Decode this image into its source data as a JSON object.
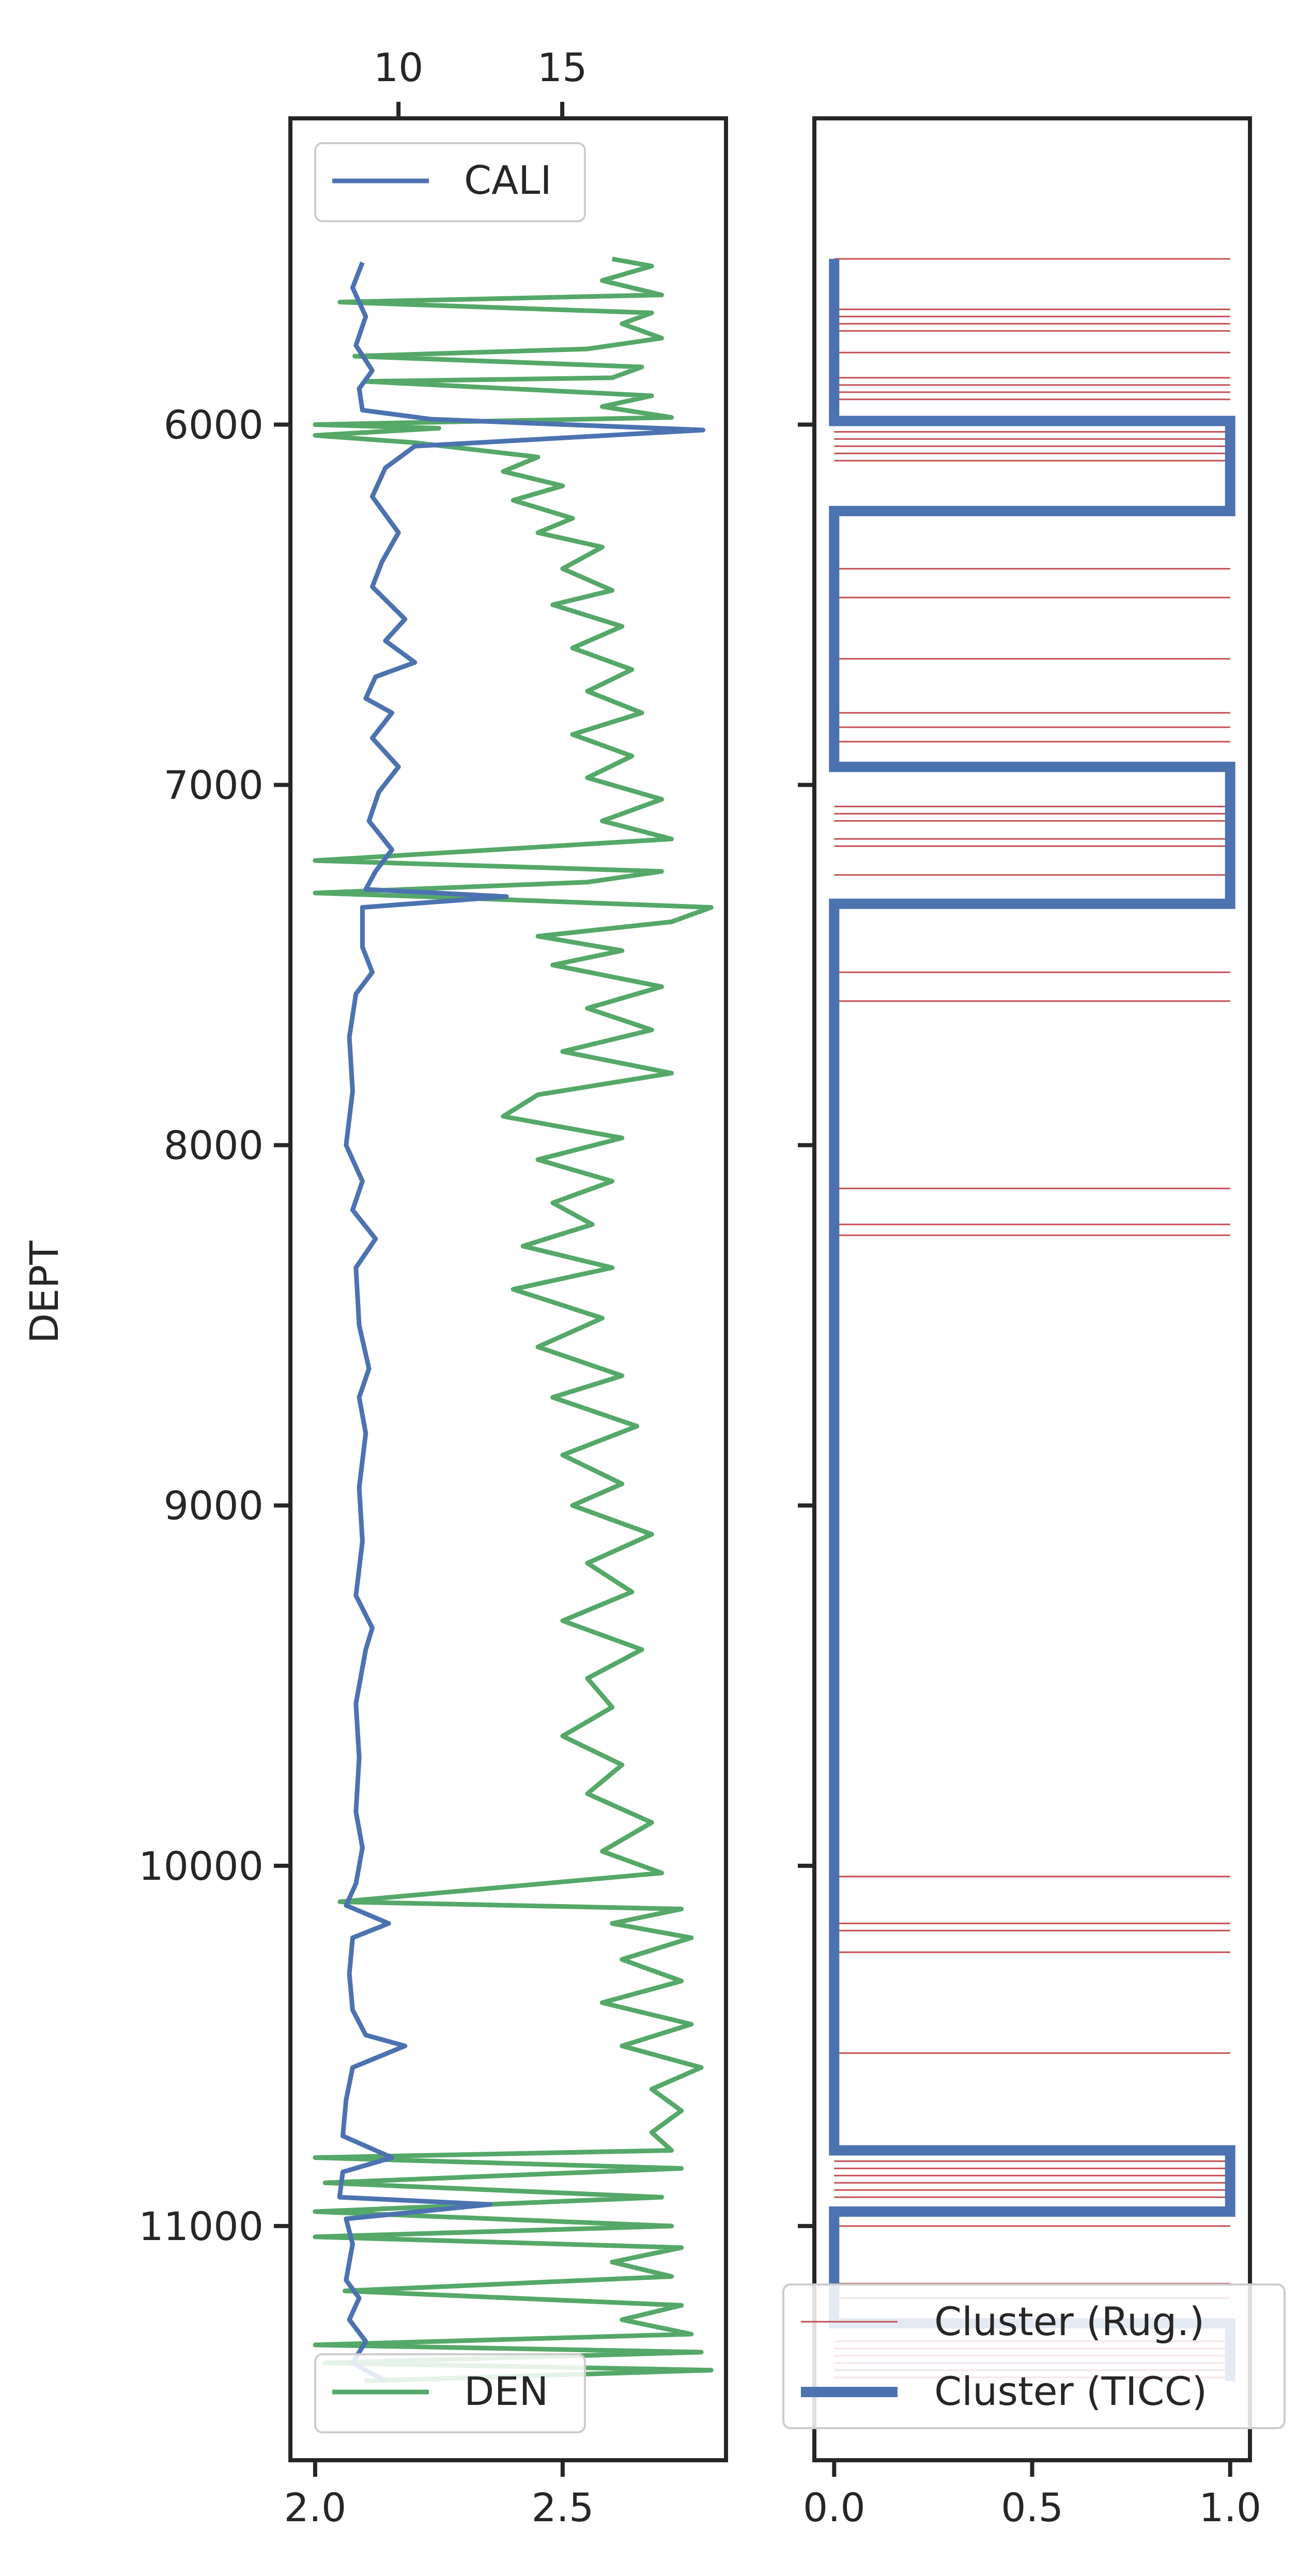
{
  "chart_data": [
    {
      "type": "line",
      "title": "",
      "ylabel": "DEPT",
      "ylim": [
        11650,
        5150
      ],
      "y_ticks": [
        "6000",
        "7000",
        "8000",
        "9000",
        "10000",
        "11000"
      ],
      "y_tick_values": [
        6000,
        7000,
        8000,
        9000,
        10000,
        11000
      ],
      "top_axis": {
        "label": "",
        "lim": [
          6.7,
          20
        ],
        "ticks": [
          "10",
          "15"
        ],
        "tick_values": [
          10,
          15
        ]
      },
      "bottom_axis": {
        "label": "",
        "lim": [
          1.95,
          2.83
        ],
        "ticks": [
          "2.0",
          "2.5"
        ],
        "tick_values": [
          2.0,
          2.5
        ]
      },
      "grid": false,
      "series": [
        {
          "name": "CALI",
          "axis": "top",
          "color": "#4c72b0",
          "legend_position": "upper-left",
          "points": [
            [
              8.9,
              5550
            ],
            [
              8.6,
              5620
            ],
            [
              9.0,
              5700
            ],
            [
              8.7,
              5780
            ],
            [
              9.2,
              5850
            ],
            [
              8.8,
              5900
            ],
            [
              8.9,
              5960
            ],
            [
              11.0,
              5985
            ],
            [
              19.3,
              6015
            ],
            [
              10.5,
              6060
            ],
            [
              9.6,
              6120
            ],
            [
              9.2,
              6200
            ],
            [
              10.0,
              6300
            ],
            [
              9.5,
              6380
            ],
            [
              9.2,
              6450
            ],
            [
              10.2,
              6540
            ],
            [
              9.6,
              6600
            ],
            [
              10.5,
              6660
            ],
            [
              9.3,
              6700
            ],
            [
              9.0,
              6760
            ],
            [
              9.8,
              6800
            ],
            [
              9.2,
              6870
            ],
            [
              10.0,
              6950
            ],
            [
              9.4,
              7020
            ],
            [
              9.1,
              7100
            ],
            [
              9.8,
              7180
            ],
            [
              9.3,
              7240
            ],
            [
              9.0,
              7290
            ],
            [
              13.3,
              7310
            ],
            [
              8.9,
              7340
            ],
            [
              8.9,
              7450
            ],
            [
              9.2,
              7520
            ],
            [
              8.7,
              7580
            ],
            [
              8.5,
              7700
            ],
            [
              8.6,
              7850
            ],
            [
              8.4,
              8000
            ],
            [
              8.9,
              8100
            ],
            [
              8.6,
              8180
            ],
            [
              9.3,
              8260
            ],
            [
              8.7,
              8340
            ],
            [
              8.8,
              8500
            ],
            [
              9.1,
              8620
            ],
            [
              8.8,
              8700
            ],
            [
              9.0,
              8800
            ],
            [
              8.8,
              8950
            ],
            [
              8.9,
              9100
            ],
            [
              8.7,
              9250
            ],
            [
              9.2,
              9340
            ],
            [
              9.0,
              9400
            ],
            [
              8.7,
              9550
            ],
            [
              8.8,
              9700
            ],
            [
              8.7,
              9850
            ],
            [
              8.9,
              9950
            ],
            [
              8.7,
              10050
            ],
            [
              8.4,
              10110
            ],
            [
              9.7,
              10160
            ],
            [
              8.6,
              10200
            ],
            [
              8.5,
              10300
            ],
            [
              8.6,
              10400
            ],
            [
              9.0,
              10470
            ],
            [
              10.2,
              10500
            ],
            [
              8.6,
              10560
            ],
            [
              8.4,
              10650
            ],
            [
              8.3,
              10750
            ],
            [
              9.8,
              10810
            ],
            [
              8.3,
              10850
            ],
            [
              8.2,
              10920
            ],
            [
              12.8,
              10940
            ],
            [
              8.4,
              10980
            ],
            [
              8.6,
              11050
            ],
            [
              8.4,
              11150
            ],
            [
              8.8,
              11200
            ],
            [
              8.5,
              11260
            ],
            [
              9.0,
              11320
            ],
            [
              8.6,
              11380
            ],
            [
              9.6,
              11430
            ]
          ]
        },
        {
          "name": "DEN",
          "axis": "bottom",
          "color": "#55a868",
          "legend_position": "lower-left",
          "points": [
            [
              2.6,
              5540
            ],
            [
              2.68,
              5560
            ],
            [
              2.58,
              5600
            ],
            [
              2.7,
              5640
            ],
            [
              2.05,
              5660
            ],
            [
              2.68,
              5690
            ],
            [
              2.62,
              5720
            ],
            [
              2.7,
              5760
            ],
            [
              2.55,
              5790
            ],
            [
              2.08,
              5810
            ],
            [
              2.66,
              5840
            ],
            [
              2.6,
              5870
            ],
            [
              2.1,
              5880
            ],
            [
              2.68,
              5920
            ],
            [
              2.58,
              5950
            ],
            [
              2.72,
              5980
            ],
            [
              2.0,
              6000
            ],
            [
              2.25,
              6010
            ],
            [
              2.0,
              6030
            ],
            [
              2.2,
              6050
            ],
            [
              2.45,
              6090
            ],
            [
              2.38,
              6130
            ],
            [
              2.5,
              6170
            ],
            [
              2.4,
              6210
            ],
            [
              2.52,
              6260
            ],
            [
              2.45,
              6300
            ],
            [
              2.58,
              6340
            ],
            [
              2.5,
              6400
            ],
            [
              2.6,
              6460
            ],
            [
              2.48,
              6500
            ],
            [
              2.62,
              6560
            ],
            [
              2.52,
              6620
            ],
            [
              2.64,
              6680
            ],
            [
              2.55,
              6740
            ],
            [
              2.66,
              6800
            ],
            [
              2.52,
              6860
            ],
            [
              2.64,
              6920
            ],
            [
              2.55,
              6980
            ],
            [
              2.7,
              7040
            ],
            [
              2.58,
              7100
            ],
            [
              2.72,
              7150
            ],
            [
              2.0,
              7210
            ],
            [
              2.7,
              7240
            ],
            [
              2.55,
              7270
            ],
            [
              2.0,
              7300
            ],
            [
              2.22,
              7310
            ],
            [
              2.8,
              7340
            ],
            [
              2.72,
              7380
            ],
            [
              2.45,
              7420
            ],
            [
              2.62,
              7460
            ],
            [
              2.48,
              7500
            ],
            [
              2.7,
              7560
            ],
            [
              2.55,
              7620
            ],
            [
              2.68,
              7680
            ],
            [
              2.5,
              7740
            ],
            [
              2.72,
              7800
            ],
            [
              2.45,
              7860
            ],
            [
              2.38,
              7920
            ],
            [
              2.62,
              7980
            ],
            [
              2.45,
              8040
            ],
            [
              2.6,
              8100
            ],
            [
              2.48,
              8160
            ],
            [
              2.56,
              8220
            ],
            [
              2.42,
              8280
            ],
            [
              2.6,
              8340
            ],
            [
              2.4,
              8400
            ],
            [
              2.58,
              8480
            ],
            [
              2.45,
              8560
            ],
            [
              2.62,
              8640
            ],
            [
              2.48,
              8700
            ],
            [
              2.65,
              8780
            ],
            [
              2.5,
              8860
            ],
            [
              2.62,
              8940
            ],
            [
              2.52,
              9000
            ],
            [
              2.68,
              9080
            ],
            [
              2.55,
              9160
            ],
            [
              2.64,
              9240
            ],
            [
              2.5,
              9320
            ],
            [
              2.66,
              9400
            ],
            [
              2.55,
              9480
            ],
            [
              2.6,
              9560
            ],
            [
              2.5,
              9640
            ],
            [
              2.62,
              9720
            ],
            [
              2.55,
              9800
            ],
            [
              2.68,
              9880
            ],
            [
              2.58,
              9960
            ],
            [
              2.7,
              10020
            ],
            [
              2.05,
              10100
            ],
            [
              2.74,
              10120
            ],
            [
              2.6,
              10160
            ],
            [
              2.76,
              10200
            ],
            [
              2.62,
              10260
            ],
            [
              2.74,
              10320
            ],
            [
              2.58,
              10380
            ],
            [
              2.76,
              10440
            ],
            [
              2.62,
              10500
            ],
            [
              2.78,
              10560
            ],
            [
              2.68,
              10620
            ],
            [
              2.74,
              10680
            ],
            [
              2.68,
              10740
            ],
            [
              2.72,
              10790
            ],
            [
              2.0,
              10810
            ],
            [
              2.74,
              10840
            ],
            [
              2.02,
              10880
            ],
            [
              2.7,
              10920
            ],
            [
              2.0,
              10960
            ],
            [
              2.72,
              11000
            ],
            [
              2.0,
              11030
            ],
            [
              2.74,
              11060
            ],
            [
              2.6,
              11100
            ],
            [
              2.72,
              11140
            ],
            [
              2.06,
              11180
            ],
            [
              2.74,
              11220
            ],
            [
              2.62,
              11260
            ],
            [
              2.76,
              11300
            ],
            [
              2.0,
              11330
            ],
            [
              2.78,
              11350
            ],
            [
              2.02,
              11380
            ],
            [
              2.8,
              11400
            ],
            [
              2.1,
              11430
            ]
          ]
        }
      ]
    },
    {
      "type": "line",
      "title": "",
      "ylim": [
        11650,
        5150
      ],
      "xlim": [
        -0.05,
        1.05
      ],
      "x_ticks": [
        "0.0",
        "0.5",
        "1.0"
      ],
      "x_tick_values": [
        0.0,
        0.5,
        1.0
      ],
      "grid": false,
      "legend_position": "lower-right",
      "series": [
        {
          "name": "Cluster (Rug.)",
          "color": "#c44e52",
          "style": "thin horizontal lines at value 1",
          "depths": [
            5540,
            5680,
            5700,
            5720,
            5740,
            5800,
            5870,
            5890,
            5910,
            5930,
            6000,
            6020,
            6040,
            6060,
            6080,
            6100,
            6400,
            6480,
            6650,
            6800,
            6840,
            6880,
            7060,
            7080,
            7100,
            7150,
            7170,
            7250,
            7520,
            7600,
            8120,
            8220,
            8250,
            10030,
            10160,
            10180,
            10240,
            10520,
            10820,
            10840,
            10860,
            10880,
            10900,
            10920,
            10960,
            11000,
            11160,
            11200,
            11260,
            11320,
            11340,
            11360,
            11380,
            11400,
            11420
          ]
        },
        {
          "name": "Cluster (TICC)",
          "color": "#4c72b0",
          "style": "thick step",
          "segments": [
            {
              "from": 5540,
              "to": 5990,
              "value": 0
            },
            {
              "from": 5990,
              "to": 6240,
              "value": 1
            },
            {
              "from": 6240,
              "to": 6950,
              "value": 0
            },
            {
              "from": 6950,
              "to": 7330,
              "value": 1
            },
            {
              "from": 7330,
              "to": 10790,
              "value": 0
            },
            {
              "from": 10790,
              "to": 10960,
              "value": 1
            },
            {
              "from": 10960,
              "to": 11270,
              "value": 0
            },
            {
              "from": 11270,
              "to": 11430,
              "value": 1
            }
          ]
        }
      ]
    }
  ]
}
